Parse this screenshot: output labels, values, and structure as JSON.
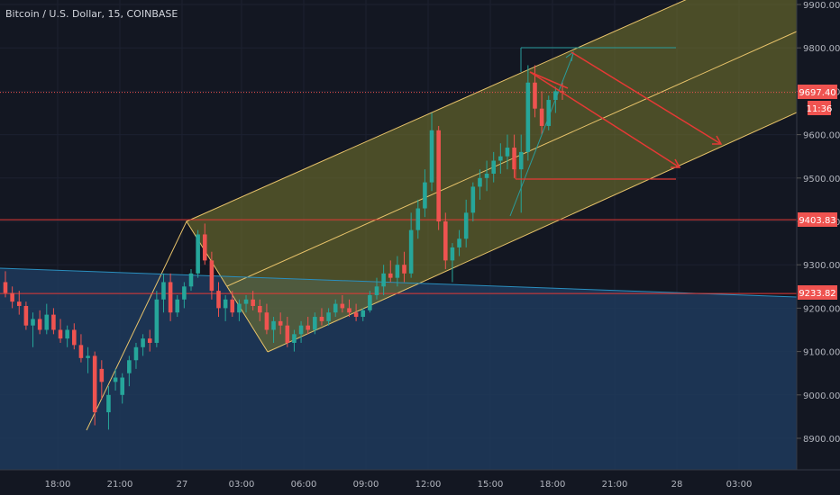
{
  "header": {
    "title": "Bitcoin / U.S. Dollar, 15, COINBASE"
  },
  "colors": {
    "background": "#131722",
    "grid": "#1f2433",
    "up": "#26a69a",
    "down": "#ef5350",
    "channel_fill": "#7d7a2e",
    "channel_line": "#e8c36a",
    "support_zone": "#1f3a5a",
    "trendline": "#2a8fbf",
    "horizontal_line": "#e53935",
    "price_tag": "#ef5350",
    "projection": "#e53935",
    "target": "#1f8f8f"
  },
  "price_tags": {
    "last_price": "9697.40",
    "countdown": "11:36",
    "level_1": "9403.83",
    "level_2": "9233.82"
  },
  "chart_data": {
    "type": "candlestick",
    "title": "Bitcoin / U.S. Dollar, 15, COINBASE",
    "ylim": [
      8830,
      9900
    ],
    "y_ticks": [
      "9900.00",
      "9800.00",
      "9700.00",
      "9600.00",
      "9500.00",
      "9400.00",
      "9300.00",
      "9200.00",
      "9100.00",
      "9000.00",
      "8900.00"
    ],
    "x_ticks": [
      "18:00",
      "21:00",
      "27",
      "03:00",
      "06:00",
      "09:00",
      "12:00",
      "15:00",
      "18:00",
      "21:00",
      "28",
      "03:00"
    ],
    "horizontal_levels": [
      9697.4,
      9403.83,
      9233.82
    ],
    "candles": [
      [
        9260,
        9285,
        9225,
        9235
      ],
      [
        9235,
        9250,
        9200,
        9215
      ],
      [
        9215,
        9240,
        9185,
        9205
      ],
      [
        9205,
        9215,
        9150,
        9160
      ],
      [
        9160,
        9190,
        9110,
        9175
      ],
      [
        9175,
        9195,
        9140,
        9150
      ],
      [
        9150,
        9210,
        9140,
        9185
      ],
      [
        9185,
        9200,
        9140,
        9150
      ],
      [
        9150,
        9175,
        9120,
        9130
      ],
      [
        9130,
        9160,
        9110,
        9150
      ],
      [
        9150,
        9165,
        9105,
        9115
      ],
      [
        9115,
        9140,
        9075,
        9085
      ],
      [
        9085,
        9110,
        9050,
        9090
      ],
      [
        9090,
        9100,
        8930,
        8960
      ],
      [
        9060,
        9080,
        8990,
        9030
      ],
      [
        8960,
        9020,
        8920,
        9000
      ],
      [
        9030,
        9060,
        9010,
        9040
      ],
      [
        9000,
        9050,
        8980,
        9040
      ],
      [
        9050,
        9090,
        9020,
        9080
      ],
      [
        9080,
        9120,
        9060,
        9110
      ],
      [
        9110,
        9140,
        9090,
        9130
      ],
      [
        9130,
        9150,
        9100,
        9120
      ],
      [
        9120,
        9240,
        9110,
        9220
      ],
      [
        9220,
        9280,
        9190,
        9260
      ],
      [
        9260,
        9280,
        9170,
        9190
      ],
      [
        9190,
        9230,
        9180,
        9220
      ],
      [
        9220,
        9260,
        9200,
        9250
      ],
      [
        9250,
        9290,
        9240,
        9280
      ],
      [
        9280,
        9380,
        9270,
        9370
      ],
      [
        9370,
        9395,
        9300,
        9310
      ],
      [
        9310,
        9330,
        9220,
        9240
      ],
      [
        9240,
        9260,
        9180,
        9200
      ],
      [
        9200,
        9230,
        9170,
        9220
      ],
      [
        9220,
        9240,
        9180,
        9190
      ],
      [
        9190,
        9220,
        9170,
        9210
      ],
      [
        9210,
        9230,
        9190,
        9220
      ],
      [
        9220,
        9240,
        9195,
        9205
      ],
      [
        9205,
        9220,
        9170,
        9190
      ],
      [
        9190,
        9210,
        9140,
        9150
      ],
      [
        9150,
        9180,
        9120,
        9170
      ],
      [
        9170,
        9190,
        9140,
        9160
      ],
      [
        9160,
        9180,
        9110,
        9120
      ],
      [
        9120,
        9150,
        9100,
        9140
      ],
      [
        9140,
        9170,
        9120,
        9160
      ],
      [
        9160,
        9180,
        9140,
        9150
      ],
      [
        9150,
        9190,
        9140,
        9180
      ],
      [
        9180,
        9200,
        9160,
        9170
      ],
      [
        9170,
        9200,
        9160,
        9190
      ],
      [
        9190,
        9220,
        9180,
        9210
      ],
      [
        9210,
        9230,
        9190,
        9200
      ],
      [
        9200,
        9220,
        9180,
        9190
      ],
      [
        9190,
        9210,
        9170,
        9180
      ],
      [
        9180,
        9200,
        9170,
        9195
      ],
      [
        9195,
        9240,
        9190,
        9230
      ],
      [
        9230,
        9270,
        9220,
        9250
      ],
      [
        9250,
        9300,
        9230,
        9280
      ],
      [
        9280,
        9310,
        9260,
        9270
      ],
      [
        9270,
        9320,
        9250,
        9300
      ],
      [
        9300,
        9330,
        9260,
        9280
      ],
      [
        9280,
        9420,
        9270,
        9380
      ],
      [
        9380,
        9450,
        9360,
        9430
      ],
      [
        9430,
        9520,
        9410,
        9490
      ],
      [
        9490,
        9650,
        9470,
        9610
      ],
      [
        9610,
        9620,
        9380,
        9400
      ],
      [
        9400,
        9420,
        9290,
        9310
      ],
      [
        9310,
        9350,
        9260,
        9340
      ],
      [
        9340,
        9380,
        9320,
        9360
      ],
      [
        9360,
        9450,
        9340,
        9420
      ],
      [
        9420,
        9490,
        9400,
        9480
      ],
      [
        9480,
        9520,
        9450,
        9500
      ],
      [
        9500,
        9540,
        9470,
        9510
      ],
      [
        9510,
        9560,
        9490,
        9540
      ],
      [
        9540,
        9580,
        9510,
        9550
      ],
      [
        9550,
        9600,
        9520,
        9570
      ],
      [
        9570,
        9600,
        9500,
        9520
      ],
      [
        9520,
        9600,
        9420,
        9560
      ],
      [
        9560,
        9760,
        9540,
        9720
      ],
      [
        9720,
        9760,
        9640,
        9660
      ],
      [
        9660,
        9700,
        9600,
        9620
      ],
      [
        9620,
        9690,
        9610,
        9680
      ],
      [
        9680,
        9710,
        9650,
        9700
      ],
      [
        9700,
        9720,
        9680,
        9697
      ]
    ],
    "drawings": [
      {
        "type": "parallel_channel",
        "points": [
          [
            9403,
            0.205
          ],
          [
            9880,
            0.915
          ]
        ],
        "width": 185,
        "color": "channel"
      },
      {
        "type": "trendline",
        "from": [
          9290,
          0.0
        ],
        "to": [
          9225,
          0.95
        ]
      },
      {
        "type": "projection_arrow",
        "from": [
          9760,
          0.69
        ],
        "to": [
          9530,
          0.865
        ]
      },
      {
        "type": "projection_arrow",
        "from": [
          9780,
          0.68
        ],
        "to": [
          9580,
          0.885
        ]
      }
    ]
  }
}
